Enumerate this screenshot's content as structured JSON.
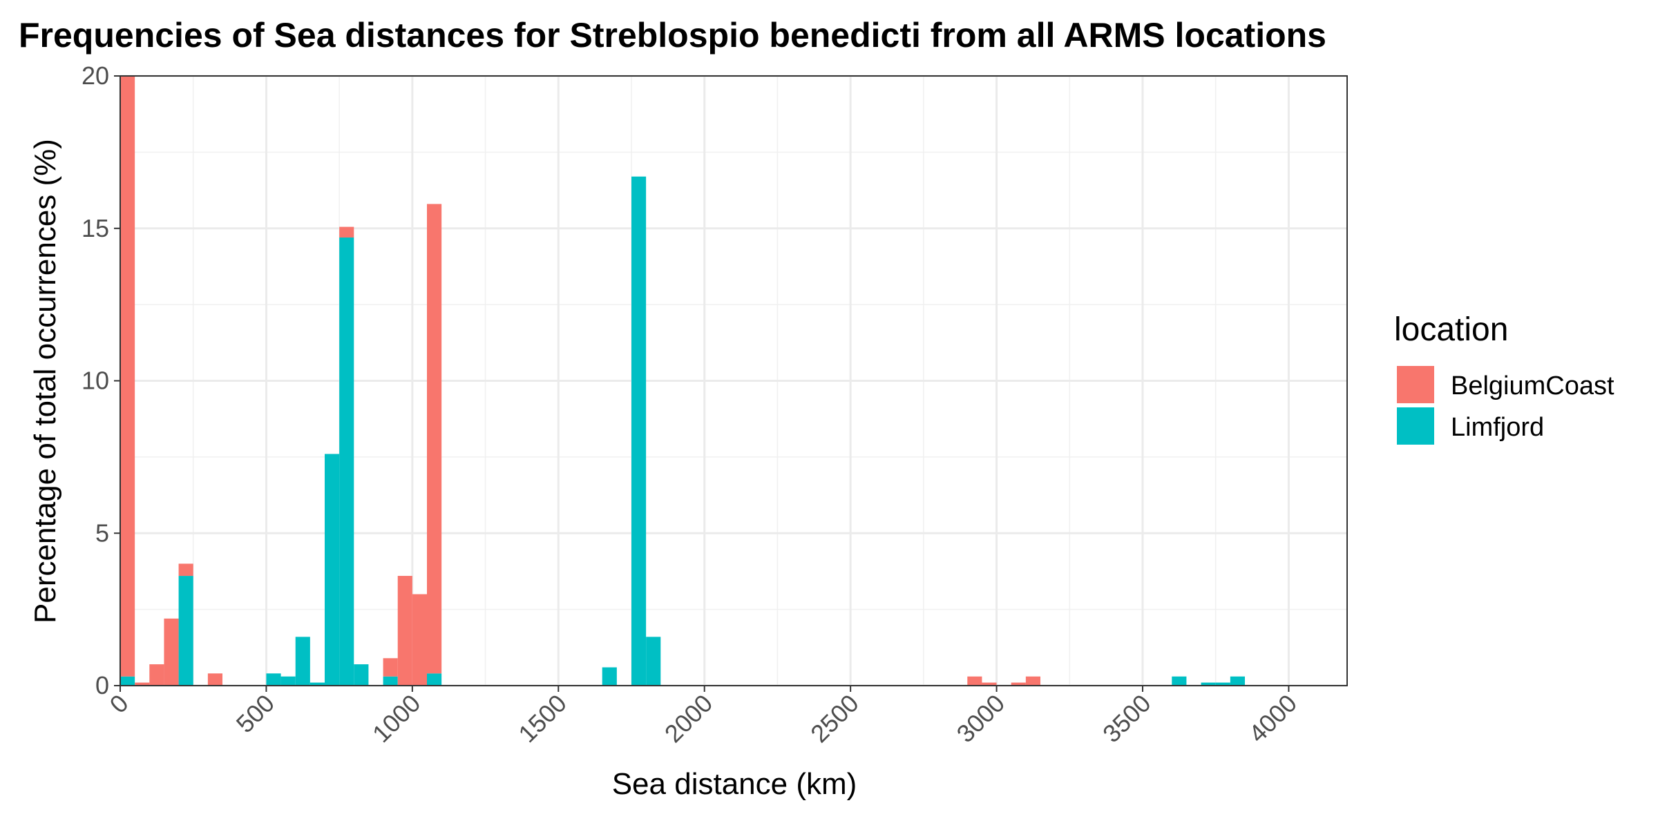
{
  "chart_data": {
    "type": "bar",
    "stacked": true,
    "title": "Frequencies of Sea distances for Streblospio benedicti from all ARMS locations",
    "xlabel": "Sea distance (km)",
    "ylabel": "Percentage of total occurrences (%)",
    "xlim": [
      0,
      4200
    ],
    "ylim": [
      0,
      20
    ],
    "bin_width": 50,
    "x_ticks": [
      0,
      500,
      1000,
      1500,
      2000,
      2500,
      3000,
      3500,
      4000
    ],
    "x_tick_labels": [
      "0",
      "500",
      "1000",
      "1500",
      "2000",
      "2500",
      "3000",
      "3500",
      "4000"
    ],
    "y_ticks": [
      0,
      5,
      10,
      15,
      20
    ],
    "y_tick_labels": [
      "0",
      "5",
      "10",
      "15",
      "20"
    ],
    "grid": true,
    "legend": {
      "title": "location",
      "position": "right",
      "entries": [
        "BelgiumCoast",
        "Limfjord"
      ]
    },
    "series": [
      {
        "name": "Limfjord",
        "color": "#00BFC4",
        "points": [
          {
            "x": 0,
            "y": 0.3
          },
          {
            "x": 200,
            "y": 3.6
          },
          {
            "x": 500,
            "y": 0.4
          },
          {
            "x": 550,
            "y": 0.3
          },
          {
            "x": 600,
            "y": 1.6
          },
          {
            "x": 650,
            "y": 0.1
          },
          {
            "x": 700,
            "y": 7.6
          },
          {
            "x": 750,
            "y": 14.7
          },
          {
            "x": 800,
            "y": 0.7
          },
          {
            "x": 900,
            "y": 0.3
          },
          {
            "x": 1050,
            "y": 0.4
          },
          {
            "x": 1650,
            "y": 0.6
          },
          {
            "x": 1750,
            "y": 16.7
          },
          {
            "x": 1800,
            "y": 1.6
          },
          {
            "x": 3600,
            "y": 0.3
          },
          {
            "x": 3700,
            "y": 0.1
          },
          {
            "x": 3750,
            "y": 0.1
          },
          {
            "x": 3800,
            "y": 0.3
          }
        ]
      },
      {
        "name": "BelgiumCoast",
        "color": "#F8766D",
        "points": [
          {
            "x": 0,
            "y": 19.7
          },
          {
            "x": 50,
            "y": 0.1
          },
          {
            "x": 100,
            "y": 0.7
          },
          {
            "x": 150,
            "y": 2.2
          },
          {
            "x": 200,
            "y": 0.4
          },
          {
            "x": 300,
            "y": 0.4
          },
          {
            "x": 750,
            "y": 0.35
          },
          {
            "x": 900,
            "y": 0.6
          },
          {
            "x": 950,
            "y": 3.6
          },
          {
            "x": 1000,
            "y": 3.0
          },
          {
            "x": 1050,
            "y": 15.4
          },
          {
            "x": 2900,
            "y": 0.3
          },
          {
            "x": 2950,
            "y": 0.1
          },
          {
            "x": 3050,
            "y": 0.1
          },
          {
            "x": 3100,
            "y": 0.3
          }
        ]
      }
    ]
  }
}
